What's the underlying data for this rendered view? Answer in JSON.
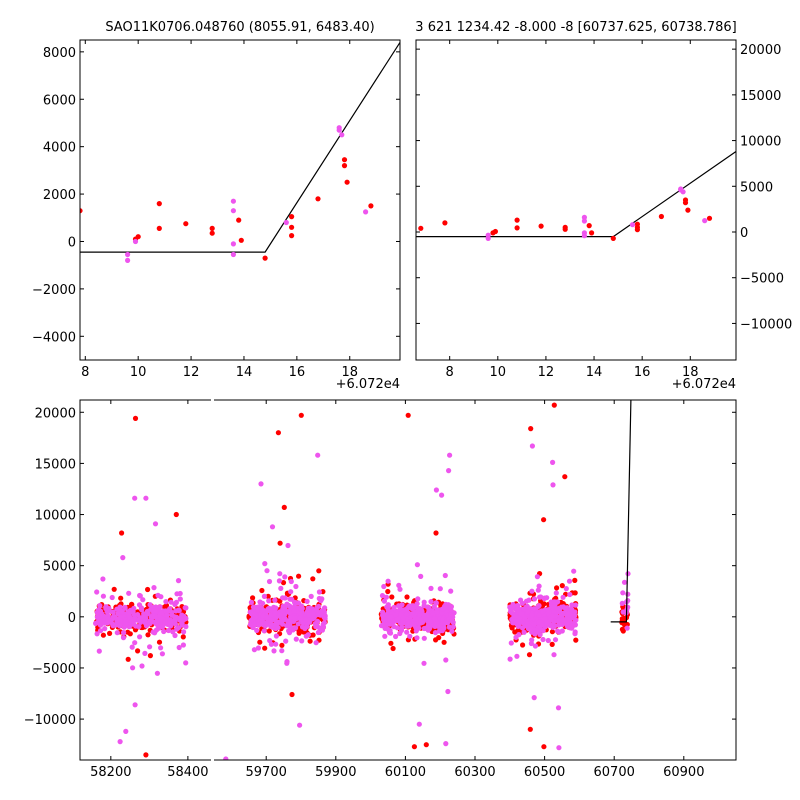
{
  "chart_data": [
    {
      "panel": "top-left zoom",
      "type": "scatter",
      "title": "SAO11K0706.048760 (8055.91, 6483.40)",
      "offset_label": "+6.072e4",
      "xlim": [
        7.8,
        19.9
      ],
      "ylim": [
        -5000,
        8500
      ],
      "xticks": [
        8,
        10,
        12,
        14,
        16,
        18
      ],
      "yticks": [
        -4000,
        -2000,
        0,
        2000,
        4000,
        6000,
        8000
      ],
      "fit_line": [
        [
          7.8,
          -450
        ],
        [
          14.8,
          -450
        ],
        [
          19.9,
          8400
        ]
      ],
      "series": [
        {
          "name": "red",
          "color": "#ff0000",
          "points": [
            [
              7.8,
              1300
            ],
            [
              10.8,
              1600
            ],
            [
              10.8,
              550
            ],
            [
              11.8,
              750
            ],
            [
              12.8,
              550
            ],
            [
              12.8,
              350
            ],
            [
              13.8,
              900
            ],
            [
              13.9,
              50
            ],
            [
              14.8,
              -700
            ],
            [
              15.8,
              1050
            ],
            [
              15.8,
              600
            ],
            [
              15.8,
              250
            ],
            [
              16.8,
              1800
            ],
            [
              17.8,
              3450
            ],
            [
              17.8,
              3200
            ],
            [
              17.9,
              2500
            ],
            [
              18.8,
              1500
            ],
            [
              9.9,
              100
            ],
            [
              10.0,
              200
            ]
          ]
        },
        {
          "name": "magenta",
          "color": "#ee55ee",
          "points": [
            [
              9.6,
              -550
            ],
            [
              9.6,
              -800
            ],
            [
              9.9,
              0
            ],
            [
              13.6,
              1700
            ],
            [
              13.6,
              1300
            ],
            [
              13.6,
              -100
            ],
            [
              13.6,
              -550
            ],
            [
              15.6,
              800
            ],
            [
              17.6,
              4800
            ],
            [
              17.6,
              4700
            ],
            [
              17.7,
              4500
            ],
            [
              18.6,
              1250
            ]
          ]
        }
      ]
    },
    {
      "panel": "top-right zoom",
      "type": "scatter",
      "title": "3 621 1234.42 -8.000 -8 [60737.625, 60738.786]",
      "offset_label": "+6.072e4",
      "xlim": [
        6.6,
        19.9
      ],
      "ylim": [
        -14000,
        21000
      ],
      "xticks": [
        8,
        10,
        12,
        14,
        16,
        18
      ],
      "yticks": [
        -10000,
        -5000,
        0,
        5000,
        10000,
        15000,
        20000
      ],
      "fit_line": [
        [
          6.6,
          -500
        ],
        [
          14.8,
          -500
        ],
        [
          19.9,
          8800
        ]
      ],
      "series": [
        {
          "name": "red",
          "color": "#ff0000",
          "points": [
            [
              6.8,
              400
            ],
            [
              7.8,
              1000
            ],
            [
              9.8,
              -100
            ],
            [
              9.9,
              50
            ],
            [
              10.8,
              1300
            ],
            [
              10.8,
              450
            ],
            [
              11.8,
              650
            ],
            [
              12.8,
              500
            ],
            [
              12.8,
              300
            ],
            [
              13.8,
              700
            ],
            [
              13.9,
              -100
            ],
            [
              14.8,
              -700
            ],
            [
              15.8,
              850
            ],
            [
              15.8,
              500
            ],
            [
              15.8,
              250
            ],
            [
              16.8,
              1700
            ],
            [
              17.8,
              3500
            ],
            [
              17.8,
              3200
            ],
            [
              17.9,
              2400
            ],
            [
              18.8,
              1500
            ]
          ]
        },
        {
          "name": "magenta",
          "color": "#ee55ee",
          "points": [
            [
              9.6,
              -350
            ],
            [
              9.6,
              -700
            ],
            [
              13.6,
              1600
            ],
            [
              13.6,
              1200
            ],
            [
              13.6,
              -100
            ],
            [
              13.6,
              -400
            ],
            [
              15.6,
              800
            ],
            [
              17.6,
              4700
            ],
            [
              17.6,
              4600
            ],
            [
              17.7,
              4400
            ],
            [
              18.6,
              1250
            ]
          ]
        }
      ]
    },
    {
      "panel": "bottom full light curve (broken x axis)",
      "type": "scatter",
      "segments": [
        {
          "xlim": [
            58120,
            58460
          ],
          "xticks": [
            58200,
            58400
          ]
        },
        {
          "xlim": [
            59550,
            61050
          ],
          "xticks": [
            59700,
            59900,
            60100,
            60300,
            60500,
            60700,
            60900
          ]
        }
      ],
      "ylim": [
        -14000,
        21200
      ],
      "yticks": [
        -10000,
        -5000,
        0,
        5000,
        10000,
        15000,
        20000
      ],
      "fit_line": [
        [
          60690,
          -500
        ],
        [
          60735,
          -500
        ],
        [
          60748,
          21200
        ]
      ],
      "clusters": [
        {
          "range": [
            58160,
            58395
          ],
          "count_red": 260,
          "count_magenta": 280,
          "seed": 11
        },
        {
          "range": [
            59650,
            59870
          ],
          "count_red": 300,
          "count_magenta": 320,
          "seed": 23
        },
        {
          "range": [
            60030,
            60240
          ],
          "count_red": 300,
          "count_magenta": 330,
          "seed": 37
        },
        {
          "range": [
            60400,
            60590
          ],
          "count_red": 300,
          "count_magenta": 320,
          "seed": 51
        },
        {
          "range": [
            60722,
            60740
          ],
          "count_red": 22,
          "count_magenta": 12,
          "seed": 67
        }
      ],
      "outliers_red": [
        [
          58264,
          19400
        ],
        [
          58228,
          8200
        ],
        [
          58370,
          10000
        ],
        [
          58291,
          -13500
        ],
        [
          59735,
          18000
        ],
        [
          59801,
          19700
        ],
        [
          59752,
          10700
        ],
        [
          59740,
          7200
        ],
        [
          59774,
          -7600
        ],
        [
          60108,
          19700
        ],
        [
          60188,
          8200
        ],
        [
          60160,
          -12500
        ],
        [
          60126,
          -12700
        ],
        [
          60460,
          18400
        ],
        [
          60528,
          20700
        ],
        [
          60558,
          13700
        ],
        [
          60498,
          -12700
        ],
        [
          60497,
          9500
        ],
        [
          60459,
          -11000
        ]
      ],
      "outliers_magenta": [
        [
          58262,
          11600
        ],
        [
          58291,
          11600
        ],
        [
          58316,
          9100
        ],
        [
          58224,
          -12200
        ],
        [
          58239,
          -11200
        ],
        [
          58263,
          -8600
        ],
        [
          59685,
          13000
        ],
        [
          59718,
          8800
        ],
        [
          59848,
          15800
        ],
        [
          59796,
          -10600
        ],
        [
          59584,
          -13900
        ],
        [
          60227,
          15800
        ],
        [
          60224,
          14300
        ],
        [
          60189,
          12400
        ],
        [
          60204,
          11900
        ],
        [
          60140,
          -10500
        ],
        [
          60216,
          -12400
        ],
        [
          60222,
          -7300
        ],
        [
          60465,
          16700
        ],
        [
          60523,
          15100
        ],
        [
          60524,
          12900
        ],
        [
          60541,
          -12800
        ],
        [
          60540,
          -8900
        ],
        [
          60470,
          -7900
        ]
      ]
    }
  ]
}
